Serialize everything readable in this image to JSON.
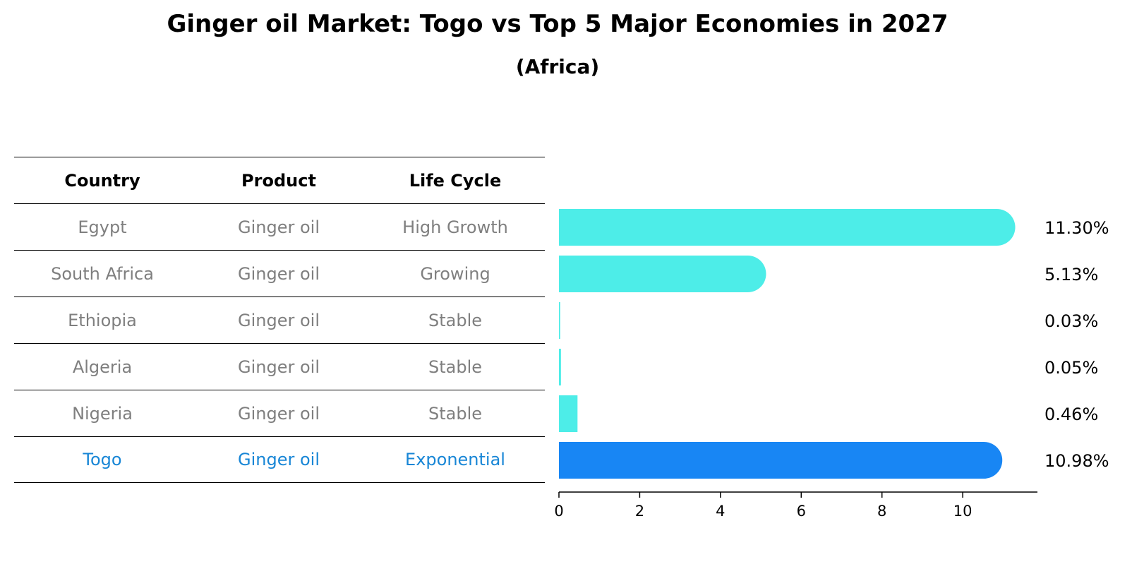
{
  "chart_data": {
    "type": "bar",
    "orientation": "horizontal",
    "title": "Ginger oil Market: Togo vs Top 5 Major Economies in 2027",
    "subtitle": "(Africa)",
    "table": {
      "headers": [
        "Country",
        "Product",
        "Life Cycle"
      ],
      "rows": [
        {
          "country": "Egypt",
          "product": "Ginger oil",
          "life_cycle": "High Growth"
        },
        {
          "country": "South Africa",
          "product": "Ginger oil",
          "life_cycle": "Growing"
        },
        {
          "country": "Ethiopia",
          "product": "Ginger oil",
          "life_cycle": "Stable"
        },
        {
          "country": "Algeria",
          "product": "Ginger oil",
          "life_cycle": "Stable"
        },
        {
          "country": "Nigeria",
          "product": "Ginger oil",
          "life_cycle": "Stable"
        },
        {
          "country": "Togo",
          "product": "Ginger oil",
          "life_cycle": "Exponential"
        }
      ]
    },
    "categories": [
      "Egypt",
      "South Africa",
      "Ethiopia",
      "Algeria",
      "Nigeria",
      "Togo"
    ],
    "values": [
      11.3,
      5.13,
      0.03,
      0.05,
      0.46,
      10.98
    ],
    "value_labels": [
      "11.30%",
      "5.13%",
      "0.03%",
      "0.05%",
      "0.46%",
      "10.98%"
    ],
    "highlight": "Togo",
    "xlim": [
      0,
      11.85
    ],
    "xticks": [
      0,
      2,
      4,
      6,
      8,
      10
    ],
    "grid": false,
    "colors": {
      "bar": "#4dede8",
      "highlight_bar": "#1886f4",
      "highlight_text": "#1886d6",
      "table_text": "#7f7f7f"
    }
  }
}
